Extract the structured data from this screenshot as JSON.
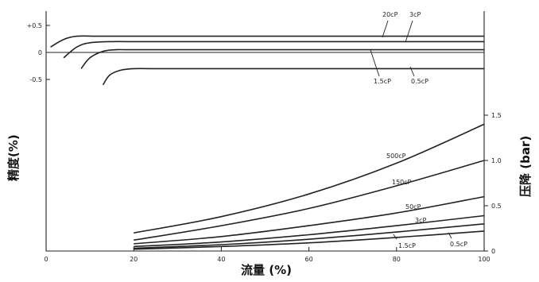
{
  "chart_data": [
    {
      "type": "line",
      "xlabel": "流量 (%)",
      "ylabel": "精度(%)",
      "xlim": [
        0,
        100
      ],
      "ylim": [
        -0.5,
        0.5
      ],
      "x_ticks": [
        "0",
        "20",
        "40",
        "60",
        "80",
        "100"
      ],
      "y_ticks": [
        "+0.5",
        "0",
        "-0.5"
      ],
      "series": [
        {
          "name": "20cP",
          "x": [
            1,
            4,
            7,
            12,
            20,
            40,
            60,
            80,
            100
          ],
          "y": [
            0.1,
            0.24,
            0.3,
            0.3,
            0.3,
            0.3,
            0.3,
            0.3,
            0.3
          ]
        },
        {
          "name": "3cP",
          "x": [
            4,
            7,
            10,
            15,
            20,
            40,
            60,
            80,
            100
          ],
          "y": [
            -0.1,
            0.1,
            0.18,
            0.2,
            0.2,
            0.2,
            0.2,
            0.2,
            0.2
          ]
        },
        {
          "name": "1.5cP",
          "x": [
            8,
            10,
            13,
            16,
            20,
            40,
            60,
            80,
            100
          ],
          "y": [
            -0.3,
            -0.1,
            0.02,
            0.05,
            0.05,
            0.05,
            0.05,
            0.05,
            0.05
          ]
        },
        {
          "name": "0.5cP",
          "x": [
            13,
            14.5,
            17,
            20,
            25,
            40,
            60,
            80,
            100
          ],
          "y": [
            -0.6,
            -0.42,
            -0.33,
            -0.3,
            -0.3,
            -0.3,
            -0.3,
            -0.3,
            -0.3
          ]
        }
      ]
    },
    {
      "type": "line",
      "ylabel": "压降 (bar)",
      "xlim": [
        0,
        100
      ],
      "ylim": [
        0,
        1.5
      ],
      "y_ticks": [
        "0",
        "0.5",
        "1.0",
        "1.5"
      ],
      "series": [
        {
          "name": "500cP",
          "x": [
            20,
            40,
            60,
            80,
            100
          ],
          "y": [
            0.2,
            0.38,
            0.63,
            0.97,
            1.4
          ]
        },
        {
          "name": "150cP",
          "x": [
            20,
            40,
            60,
            80,
            100
          ],
          "y": [
            0.12,
            0.28,
            0.47,
            0.72,
            1.0
          ]
        },
        {
          "name": "50cP",
          "x": [
            20,
            40,
            60,
            80,
            100
          ],
          "y": [
            0.08,
            0.16,
            0.28,
            0.42,
            0.6
          ]
        },
        {
          "name": "3cP",
          "x": [
            20,
            40,
            60,
            80,
            100
          ],
          "y": [
            0.05,
            0.1,
            0.18,
            0.28,
            0.39
          ]
        },
        {
          "name": "1.5cP",
          "x": [
            20,
            40,
            60,
            80,
            100
          ],
          "y": [
            0.03,
            0.07,
            0.13,
            0.21,
            0.3
          ]
        },
        {
          "name": "0.5cP",
          "x": [
            20,
            40,
            60,
            80,
            100
          ],
          "y": [
            0.02,
            0.05,
            0.09,
            0.15,
            0.22
          ]
        }
      ]
    }
  ]
}
